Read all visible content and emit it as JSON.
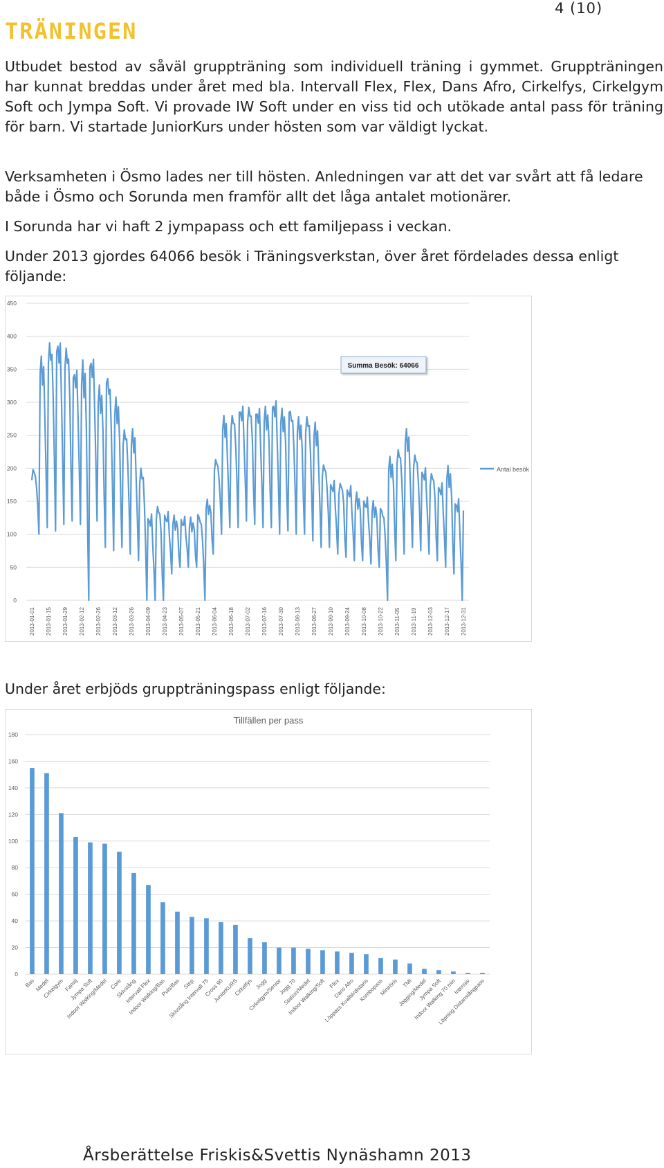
{
  "page_number": "4 (10)",
  "heading": "TRÄNINGEN",
  "paragraphs": {
    "p1": "Utbudet bestod av såväl gruppträning som individuell träning i gymmet. Gruppträningen har kunnat breddas under året med bla. Intervall Flex, Flex, Dans Afro, Cirkelfys, Cirkelgym Soft och Jympa Soft. Vi provade IW Soft under en viss tid och utökade antal pass för träning för barn. Vi startade JuniorKurs under hösten som var väldigt lyckat.",
    "p2": "Verksamheten i Ösmo lades ner till hösten. Anledningen var att det var svårt att få ledare både i Ösmo och Sorunda men framför allt det låga antalet motionärer.",
    "p3": "I Sorunda har vi haft 2 jympapass och ett familjepass i veckan.",
    "p4": "Under 2013 gjordes 64066 besök i Träningsverkstan, över året fördelades dessa enligt följande:",
    "p5": "Under året erbjöds gruppträningspass enligt följande:"
  },
  "footer": "Årsberättelse Friskis&Svettis Nynäshamn 2013",
  "colors": {
    "heading": "#F2C12E",
    "series": "#5B9BD5",
    "grid": "#d9d9d9"
  },
  "chart_data": [
    {
      "type": "line",
      "title": "",
      "series_name": "Antal besök",
      "annotation": "Summa Besök: 64066",
      "ylim": [
        0,
        450
      ],
      "yticks": [
        0,
        50,
        100,
        150,
        200,
        250,
        300,
        350,
        400,
        450
      ],
      "grid": true,
      "legend": "right",
      "xtick_labels": [
        "2013-01-01",
        "2013-01-15",
        "2013-01-29",
        "2013-02-12",
        "2013-02-26",
        "2013-03-12",
        "2013-03-26",
        "2013-04-09",
        "2013-04-23",
        "2013-05-07",
        "2013-05-21",
        "2013-06-04",
        "2013-06-18",
        "2013-07-02",
        "2013-07-16",
        "2013-07-30",
        "2013-08-13",
        "2013-08-27",
        "2013-09-10",
        "2013-09-24",
        "2013-10-08",
        "2013-10-22",
        "2013-11-05",
        "2013-11-19",
        "2013-12-03",
        "2013-12-17",
        "2013-12-31"
      ],
      "weekly_peaks": [
        200,
        360,
        390,
        395,
        380,
        350,
        360,
        365,
        320,
        340,
        300,
        260,
        250,
        200,
        130,
        140,
        130,
        125,
        120,
        120,
        130,
        145,
        215,
        270,
        280,
        295,
        290,
        290,
        290,
        300,
        285,
        290,
        270,
        280,
        260,
        205,
        180,
        175,
        170,
        160,
        150,
        145,
        140,
        210,
        230,
        250,
        220,
        200,
        190,
        175,
        200,
        150
      ],
      "weekly_lows": [
        100,
        110,
        105,
        115,
        120,
        115,
        0,
        120,
        80,
        75,
        80,
        70,
        60,
        0,
        0,
        0,
        40,
        50,
        50,
        50,
        0,
        70,
        100,
        110,
        110,
        120,
        115,
        110,
        110,
        100,
        105,
        100,
        100,
        90,
        80,
        80,
        70,
        65,
        60,
        60,
        55,
        50,
        0,
        60,
        70,
        80,
        75,
        70,
        60,
        50,
        40,
        0
      ]
    },
    {
      "type": "bar",
      "title": "Tillfällen per pass",
      "ylim": [
        0,
        180
      ],
      "yticks": [
        0,
        20,
        40,
        60,
        80,
        100,
        120,
        140,
        160,
        180
      ],
      "grid": true,
      "categories": [
        "Bas",
        "Medel",
        "Cirkelgym",
        "Familj",
        "Jympa Soft",
        "Indoor Walking/Medel",
        "Core",
        "Skivstång",
        "Intervall Flex",
        "Indoor Walking/Bas",
        "Puls/Bas",
        "Step",
        "Skivstång Intervall 75",
        "Cross 90",
        "JuniorKURS",
        "Cirkelfys",
        "Jogg",
        "Cirkelgym/Senior",
        "Jogg 70",
        "Station/Medel",
        "Indoor Walking/Soft",
        "Flex",
        "Dans Afro",
        "Löppass Kvalité/distans",
        "Kombopass",
        "Miniröris",
        "TMI",
        "Jogging/Medel",
        "Jympa Soft",
        "Indoor Walking 70 min",
        "Intensiv",
        "Löpning Distanslångpass"
      ],
      "values": [
        155,
        151,
        121,
        103,
        99,
        98,
        92,
        76,
        67,
        54,
        47,
        43,
        42,
        39,
        37,
        27,
        24,
        20,
        20,
        19,
        18,
        17,
        16,
        15,
        12,
        11,
        8,
        4,
        3,
        2,
        1,
        1
      ]
    }
  ]
}
